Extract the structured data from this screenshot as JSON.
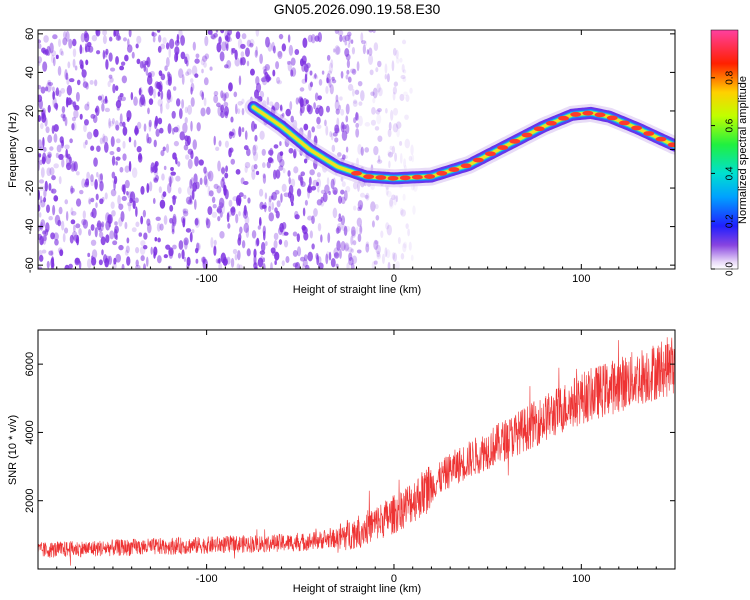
{
  "figure": {
    "title": "GN05.2026.090.19.58.E30"
  },
  "colors": {
    "snr_trace": "#ee3333",
    "spectral_noise": "#7b2ee0",
    "ridge_core": "#ff3a2a"
  },
  "chart_data": [
    {
      "type": "heatmap",
      "name": "spectrogram",
      "xlabel": "Height of straight line (km)",
      "ylabel": "Frequency (Hz)",
      "xlim": [
        -190,
        150
      ],
      "ylim": [
        -62,
        62
      ],
      "xticks": [
        -100,
        0,
        100
      ],
      "yticks": [
        -60,
        -40,
        -20,
        0,
        20,
        40,
        60
      ],
      "colorbar": {
        "label": "Normalized spectral amplitude",
        "range": [
          0,
          1
        ],
        "ticks": [
          0.0,
          0.2,
          0.4,
          0.6,
          0.8
        ]
      },
      "ridge": {
        "description": "Dominant frequency track vs height",
        "x": [
          -75,
          -60,
          -45,
          -30,
          -15,
          0,
          20,
          40,
          60,
          80,
          95,
          105,
          115,
          130,
          150
        ],
        "y": [
          22,
          12,
          0,
          -9,
          -14,
          -15,
          -14,
          -8,
          2,
          12,
          18,
          19,
          17,
          11,
          2
        ]
      },
      "noise_extent_x": [
        -190,
        -20
      ]
    },
    {
      "type": "line",
      "name": "snr",
      "xlabel": "Height of straight line (km)",
      "ylabel": "SNR (10 * v/v)",
      "xlim": [
        -190,
        150
      ],
      "ylim": [
        0,
        7000
      ],
      "xticks": [
        -100,
        0,
        100
      ],
      "yticks": [
        2000,
        4000,
        6000
      ],
      "trend": {
        "x": [
          -190,
          -150,
          -100,
          -50,
          -30,
          -15,
          0,
          15,
          30,
          60,
          100,
          130,
          150
        ],
        "y": [
          550,
          620,
          700,
          780,
          900,
          1200,
          1600,
          2200,
          2900,
          3800,
          5000,
          5600,
          6000
        ]
      }
    }
  ]
}
